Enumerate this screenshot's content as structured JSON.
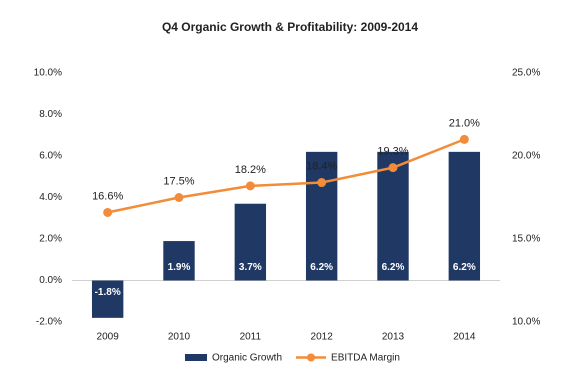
{
  "chart_data": {
    "type": "combo",
    "title": "Q4 Organic Growth & Profitability: 2009-2014",
    "categories": [
      "2009",
      "2010",
      "2011",
      "2012",
      "2013",
      "2014"
    ],
    "series": [
      {
        "name": "Organic Growth",
        "type": "bar",
        "color": "#1f3864",
        "values": [
          -1.8,
          1.9,
          3.7,
          6.2,
          6.2,
          6.2
        ],
        "value_labels": [
          "-1.8%",
          "1.9%",
          "3.7%",
          "6.2%",
          "6.2%",
          "6.2%"
        ]
      },
      {
        "name": "EBITDA Margin",
        "type": "line",
        "axis": "y2",
        "color": "#f28c38",
        "values": [
          16.6,
          17.5,
          18.2,
          18.4,
          19.3,
          21.0
        ],
        "value_labels": [
          "16.6%",
          "17.5%",
          "18.2%",
          "18.4%",
          "19.3%",
          "21.0%"
        ]
      }
    ],
    "ylim": [
      -2,
      10
    ],
    "yticks": [
      {
        "value": -2,
        "label": "-2.0%"
      },
      {
        "value": 0,
        "label": "0.0%"
      },
      {
        "value": 2,
        "label": "2.0%"
      },
      {
        "value": 4,
        "label": "4.0%"
      },
      {
        "value": 6,
        "label": "6.0%"
      },
      {
        "value": 8,
        "label": "8.0%"
      },
      {
        "value": 10,
        "label": "10.0%"
      }
    ],
    "y2lim": [
      10,
      25
    ],
    "y2ticks": [
      {
        "value": 10,
        "label": "10.0%"
      },
      {
        "value": 15,
        "label": "15.0%"
      },
      {
        "value": 20,
        "label": "20.0%"
      },
      {
        "value": 25,
        "label": "25.0%"
      }
    ]
  }
}
